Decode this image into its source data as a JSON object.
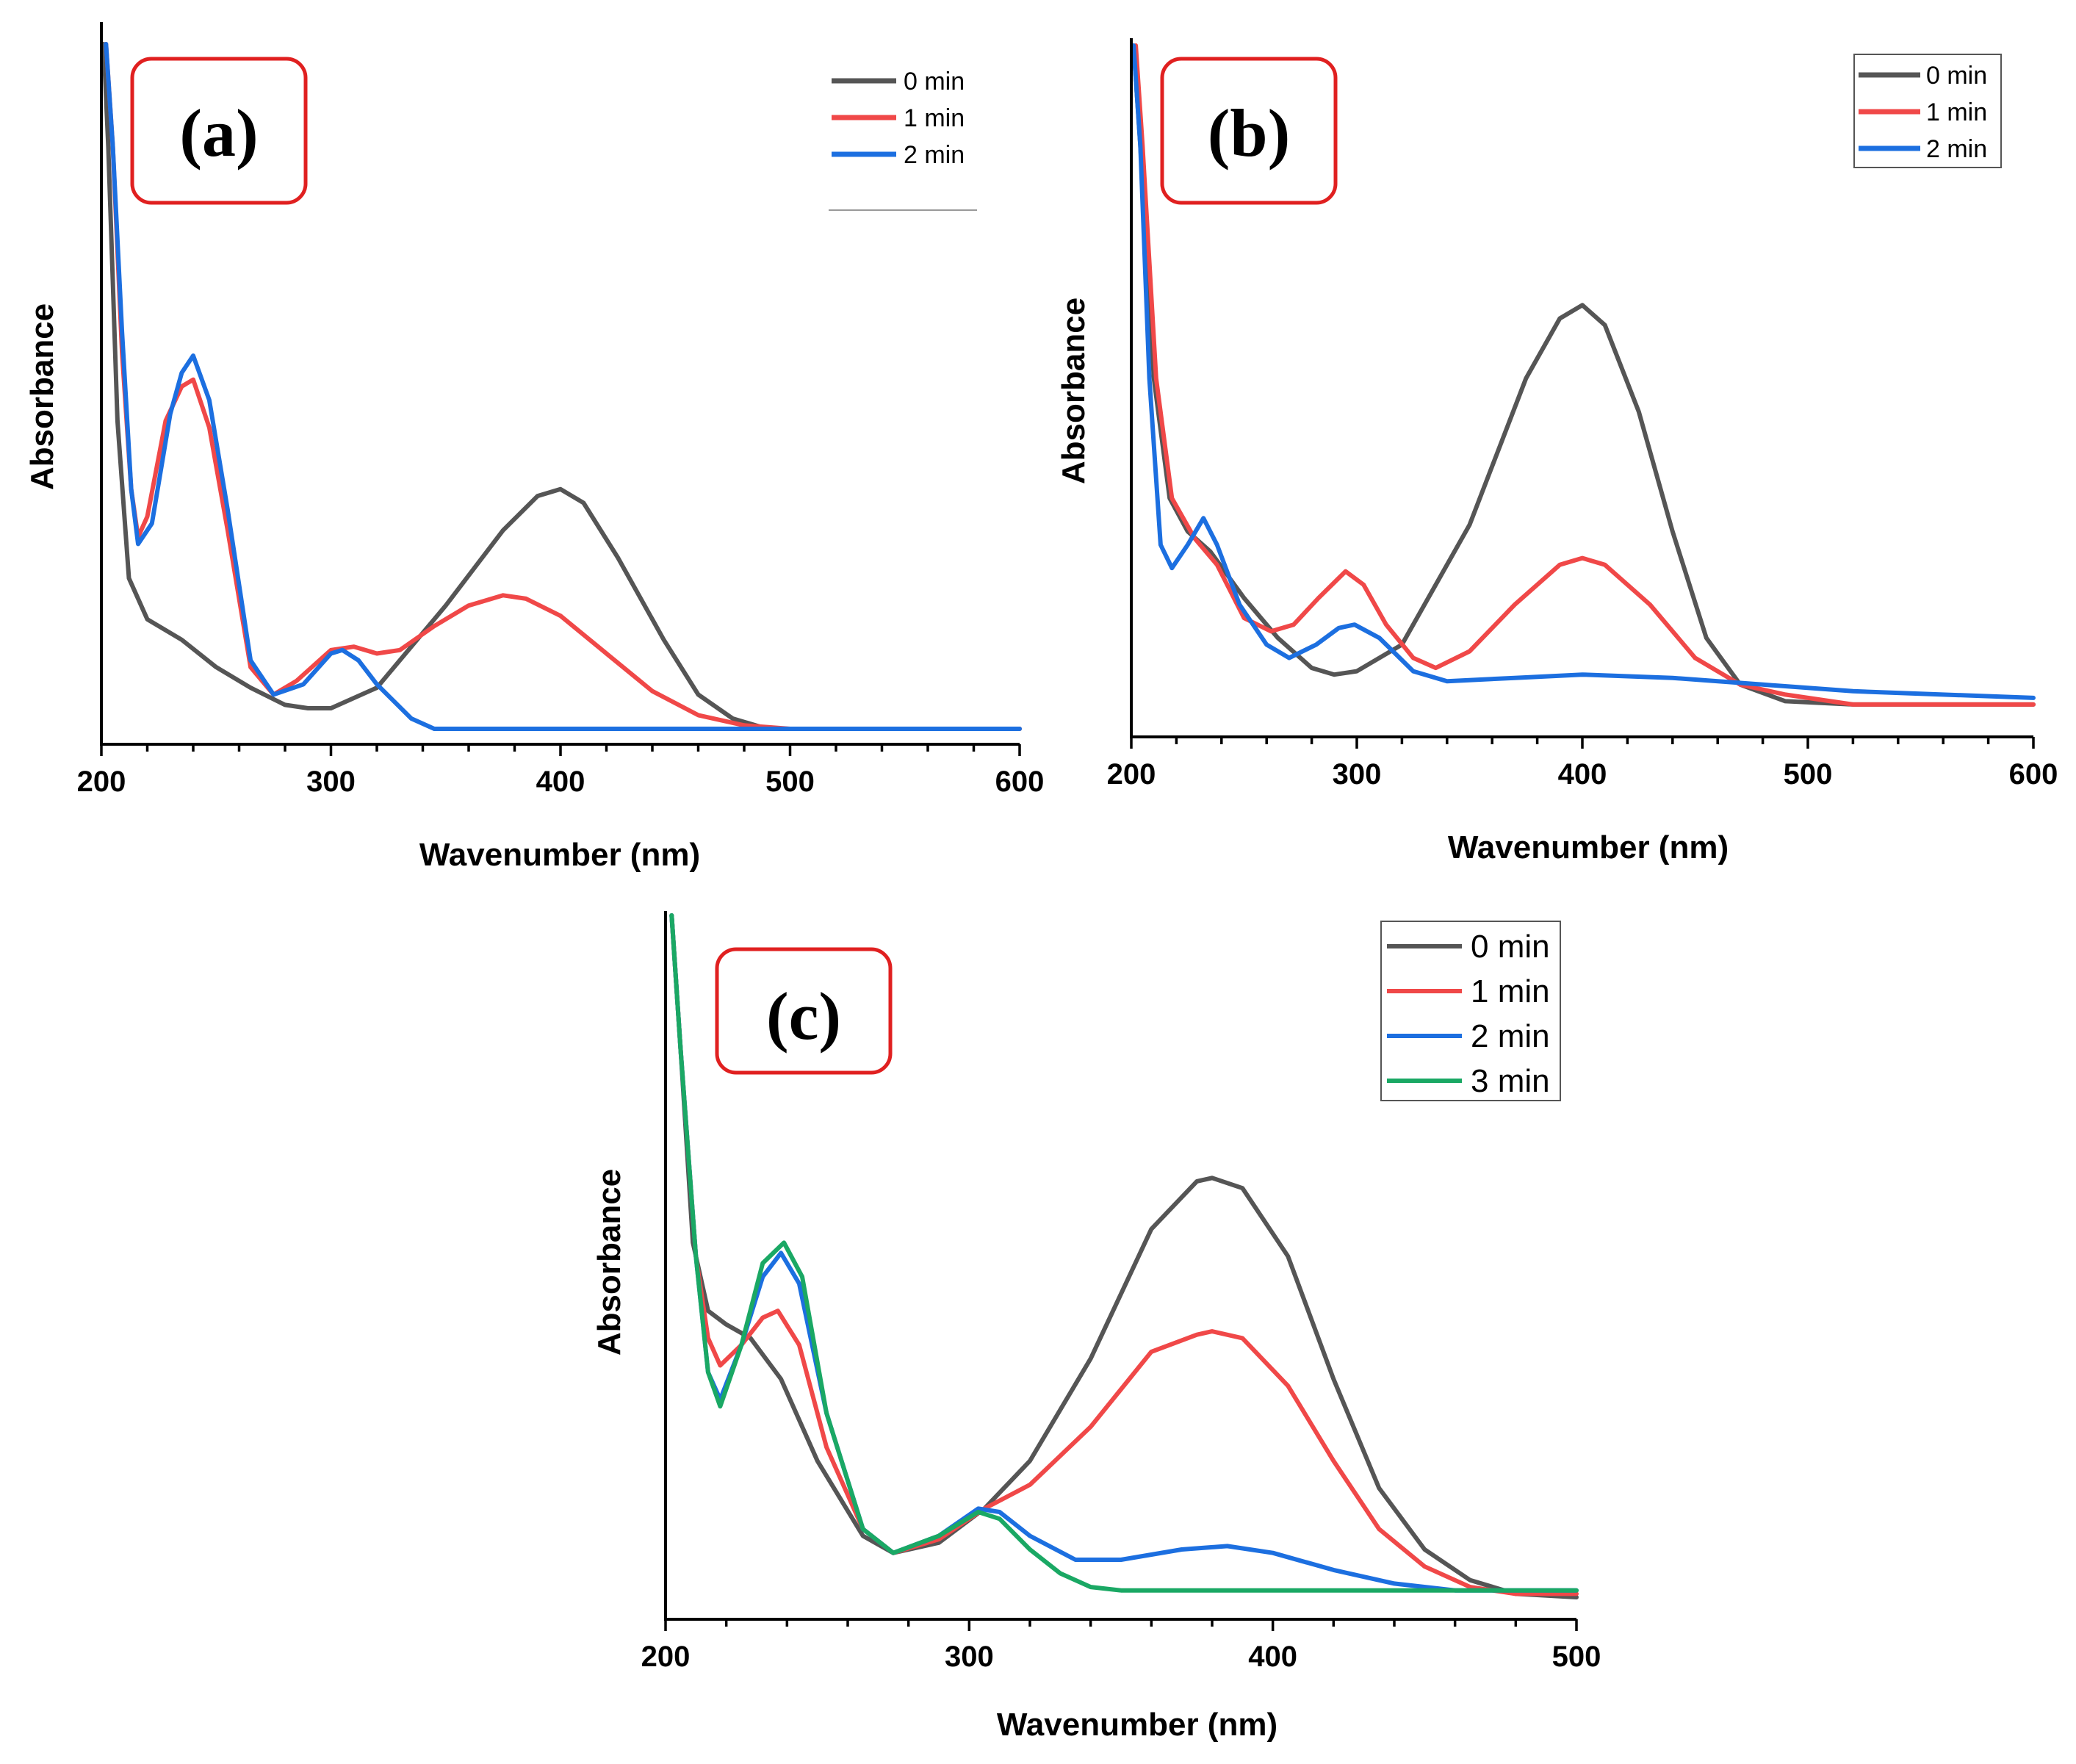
{
  "chart_data": [
    {
      "id": "a",
      "type": "line",
      "panel_label": "(a)",
      "xlabel": "Wavenumber (nm)",
      "ylabel": "Absorbance",
      "xlim": [
        200,
        600
      ],
      "ylim": [
        0,
        1
      ],
      "xticks": [
        200,
        300,
        400,
        500,
        600
      ],
      "legend": [
        "0 min",
        "1 min",
        "2 min"
      ],
      "series": [
        {
          "name": "0 min",
          "color": "#555555",
          "points": [
            [
              201,
              1.0
            ],
            [
              203,
              0.85
            ],
            [
              207,
              0.45
            ],
            [
              212,
              0.22
            ],
            [
              220,
              0.16
            ],
            [
              235,
              0.13
            ],
            [
              250,
              0.09
            ],
            [
              265,
              0.06
            ],
            [
              280,
              0.035
            ],
            [
              290,
              0.03
            ],
            [
              300,
              0.03
            ],
            [
              320,
              0.06
            ],
            [
              350,
              0.18
            ],
            [
              375,
              0.29
            ],
            [
              390,
              0.34
            ],
            [
              400,
              0.35
            ],
            [
              410,
              0.33
            ],
            [
              425,
              0.25
            ],
            [
              445,
              0.13
            ],
            [
              460,
              0.05
            ],
            [
              475,
              0.015
            ],
            [
              490,
              0.0
            ],
            [
              600,
              0.0
            ]
          ]
        },
        {
          "name": "1 min",
          "color": "#f04848",
          "points": [
            [
              202,
              1.0
            ],
            [
              205,
              0.85
            ],
            [
              209,
              0.55
            ],
            [
              213,
              0.35
            ],
            [
              216,
              0.28
            ],
            [
              220,
              0.31
            ],
            [
              228,
              0.45
            ],
            [
              235,
              0.5
            ],
            [
              240,
              0.51
            ],
            [
              247,
              0.44
            ],
            [
              255,
              0.29
            ],
            [
              265,
              0.09
            ],
            [
              275,
              0.05
            ],
            [
              285,
              0.07
            ],
            [
              300,
              0.115
            ],
            [
              310,
              0.12
            ],
            [
              320,
              0.11
            ],
            [
              330,
              0.115
            ],
            [
              345,
              0.15
            ],
            [
              360,
              0.18
            ],
            [
              375,
              0.195
            ],
            [
              385,
              0.19
            ],
            [
              400,
              0.165
            ],
            [
              420,
              0.11
            ],
            [
              440,
              0.055
            ],
            [
              460,
              0.02
            ],
            [
              480,
              0.005
            ],
            [
              500,
              0.0
            ],
            [
              600,
              0.0
            ]
          ]
        },
        {
          "name": "2 min",
          "color": "#1c6fe0",
          "points": [
            [
              202,
              1.0
            ],
            [
              205,
              0.85
            ],
            [
              209,
              0.58
            ],
            [
              213,
              0.35
            ],
            [
              216,
              0.27
            ],
            [
              222,
              0.3
            ],
            [
              230,
              0.46
            ],
            [
              235,
              0.52
            ],
            [
              240,
              0.545
            ],
            [
              247,
              0.48
            ],
            [
              255,
              0.32
            ],
            [
              265,
              0.1
            ],
            [
              275,
              0.05
            ],
            [
              288,
              0.065
            ],
            [
              300,
              0.11
            ],
            [
              305,
              0.115
            ],
            [
              312,
              0.1
            ],
            [
              320,
              0.065
            ],
            [
              335,
              0.015
            ],
            [
              345,
              0.0
            ],
            [
              600,
              0.0
            ]
          ]
        }
      ]
    },
    {
      "id": "b",
      "type": "line",
      "panel_label": "(b)",
      "xlabel": "Wavenumber (nm)",
      "ylabel": "Absorbance",
      "xlim": [
        200,
        600
      ],
      "ylim": [
        0,
        1
      ],
      "xticks": [
        200,
        300,
        400,
        500,
        600
      ],
      "legend": [
        "0 min",
        "1 min",
        "2 min"
      ],
      "series": [
        {
          "name": "0 min",
          "color": "#555555",
          "points": [
            [
              201,
              1.0
            ],
            [
              204,
              0.85
            ],
            [
              210,
              0.5
            ],
            [
              217,
              0.32
            ],
            [
              225,
              0.27
            ],
            [
              235,
              0.24
            ],
            [
              250,
              0.17
            ],
            [
              265,
              0.11
            ],
            [
              280,
              0.065
            ],
            [
              290,
              0.055
            ],
            [
              300,
              0.06
            ],
            [
              320,
              0.1
            ],
            [
              350,
              0.28
            ],
            [
              375,
              0.5
            ],
            [
              390,
              0.59
            ],
            [
              400,
              0.61
            ],
            [
              410,
              0.58
            ],
            [
              425,
              0.45
            ],
            [
              440,
              0.27
            ],
            [
              455,
              0.11
            ],
            [
              470,
              0.04
            ],
            [
              490,
              0.015
            ],
            [
              520,
              0.01
            ],
            [
              600,
              0.01
            ]
          ]
        },
        {
          "name": "1 min",
          "color": "#f04848",
          "points": [
            [
              202,
              1.0
            ],
            [
              205,
              0.85
            ],
            [
              211,
              0.5
            ],
            [
              218,
              0.32
            ],
            [
              228,
              0.26
            ],
            [
              238,
              0.22
            ],
            [
              250,
              0.14
            ],
            [
              262,
              0.12
            ],
            [
              272,
              0.13
            ],
            [
              283,
              0.17
            ],
            [
              295,
              0.21
            ],
            [
              303,
              0.19
            ],
            [
              313,
              0.13
            ],
            [
              325,
              0.08
            ],
            [
              335,
              0.065
            ],
            [
              350,
              0.09
            ],
            [
              370,
              0.16
            ],
            [
              390,
              0.22
            ],
            [
              400,
              0.23
            ],
            [
              410,
              0.22
            ],
            [
              430,
              0.16
            ],
            [
              450,
              0.08
            ],
            [
              470,
              0.04
            ],
            [
              490,
              0.025
            ],
            [
              520,
              0.01
            ],
            [
              600,
              0.01
            ]
          ]
        },
        {
          "name": "2 min",
          "color": "#1c6fe0",
          "points": [
            [
              201,
              1.0
            ],
            [
              204,
              0.85
            ],
            [
              208,
              0.5
            ],
            [
              213,
              0.25
            ],
            [
              218,
              0.215
            ],
            [
              225,
              0.25
            ],
            [
              232,
              0.29
            ],
            [
              238,
              0.25
            ],
            [
              248,
              0.16
            ],
            [
              260,
              0.1
            ],
            [
              270,
              0.08
            ],
            [
              282,
              0.1
            ],
            [
              292,
              0.125
            ],
            [
              299,
              0.13
            ],
            [
              310,
              0.11
            ],
            [
              325,
              0.06
            ],
            [
              340,
              0.045
            ],
            [
              370,
              0.05
            ],
            [
              400,
              0.055
            ],
            [
              440,
              0.05
            ],
            [
              480,
              0.04
            ],
            [
              520,
              0.03
            ],
            [
              600,
              0.02
            ]
          ]
        }
      ]
    },
    {
      "id": "c",
      "type": "line",
      "panel_label": "(c)",
      "xlabel": "Wavenumber (nm)",
      "ylabel": "Absorbance",
      "xlim": [
        200,
        500
      ],
      "ylim": [
        0,
        1
      ],
      "xticks": [
        200,
        300,
        400,
        500
      ],
      "legend": [
        "0 min",
        "1 min",
        "2 min",
        "3 min"
      ],
      "series": [
        {
          "name": "0 min",
          "color": "#555555",
          "points": [
            [
              202,
              1.0
            ],
            [
              205,
              0.8
            ],
            [
              209,
              0.52
            ],
            [
              214,
              0.42
            ],
            [
              220,
              0.4
            ],
            [
              228,
              0.38
            ],
            [
              238,
              0.32
            ],
            [
              250,
              0.2
            ],
            [
              265,
              0.09
            ],
            [
              275,
              0.065
            ],
            [
              290,
              0.08
            ],
            [
              305,
              0.13
            ],
            [
              320,
              0.2
            ],
            [
              340,
              0.35
            ],
            [
              360,
              0.54
            ],
            [
              375,
              0.61
            ],
            [
              380,
              0.615
            ],
            [
              390,
              0.6
            ],
            [
              405,
              0.5
            ],
            [
              420,
              0.32
            ],
            [
              435,
              0.16
            ],
            [
              450,
              0.07
            ],
            [
              465,
              0.025
            ],
            [
              480,
              0.005
            ],
            [
              500,
              0.0
            ]
          ]
        },
        {
          "name": "1 min",
          "color": "#f04848",
          "points": [
            [
              202,
              1.0
            ],
            [
              205,
              0.8
            ],
            [
              210,
              0.5
            ],
            [
              214,
              0.38
            ],
            [
              218,
              0.34
            ],
            [
              225,
              0.37
            ],
            [
              232,
              0.41
            ],
            [
              237,
              0.42
            ],
            [
              244,
              0.37
            ],
            [
              253,
              0.22
            ],
            [
              265,
              0.1
            ],
            [
              275,
              0.065
            ],
            [
              290,
              0.085
            ],
            [
              305,
              0.13
            ],
            [
              320,
              0.165
            ],
            [
              340,
              0.25
            ],
            [
              360,
              0.36
            ],
            [
              375,
              0.385
            ],
            [
              380,
              0.39
            ],
            [
              390,
              0.38
            ],
            [
              405,
              0.31
            ],
            [
              420,
              0.2
            ],
            [
              435,
              0.1
            ],
            [
              450,
              0.045
            ],
            [
              465,
              0.015
            ],
            [
              480,
              0.005
            ],
            [
              500,
              0.005
            ]
          ]
        },
        {
          "name": "2 min",
          "color": "#1c6fe0",
          "points": [
            [
              202,
              1.0
            ],
            [
              205,
              0.8
            ],
            [
              210,
              0.5
            ],
            [
              214,
              0.33
            ],
            [
              218,
              0.29
            ],
            [
              225,
              0.37
            ],
            [
              232,
              0.47
            ],
            [
              238,
              0.505
            ],
            [
              244,
              0.46
            ],
            [
              253,
              0.27
            ],
            [
              265,
              0.1
            ],
            [
              275,
              0.065
            ],
            [
              290,
              0.09
            ],
            [
              303,
              0.13
            ],
            [
              310,
              0.125
            ],
            [
              320,
              0.09
            ],
            [
              335,
              0.055
            ],
            [
              350,
              0.055
            ],
            [
              370,
              0.07
            ],
            [
              385,
              0.075
            ],
            [
              400,
              0.065
            ],
            [
              420,
              0.04
            ],
            [
              440,
              0.02
            ],
            [
              460,
              0.01
            ],
            [
              500,
              0.01
            ]
          ]
        },
        {
          "name": "3 min",
          "color": "#1aa864",
          "points": [
            [
              202,
              1.0
            ],
            [
              205,
              0.8
            ],
            [
              210,
              0.5
            ],
            [
              214,
              0.33
            ],
            [
              218,
              0.28
            ],
            [
              225,
              0.37
            ],
            [
              232,
              0.49
            ],
            [
              239,
              0.52
            ],
            [
              245,
              0.47
            ],
            [
              253,
              0.27
            ],
            [
              265,
              0.1
            ],
            [
              275,
              0.065
            ],
            [
              290,
              0.09
            ],
            [
              303,
              0.125
            ],
            [
              310,
              0.115
            ],
            [
              320,
              0.07
            ],
            [
              330,
              0.035
            ],
            [
              340,
              0.015
            ],
            [
              350,
              0.01
            ],
            [
              500,
              0.01
            ]
          ]
        }
      ]
    }
  ]
}
